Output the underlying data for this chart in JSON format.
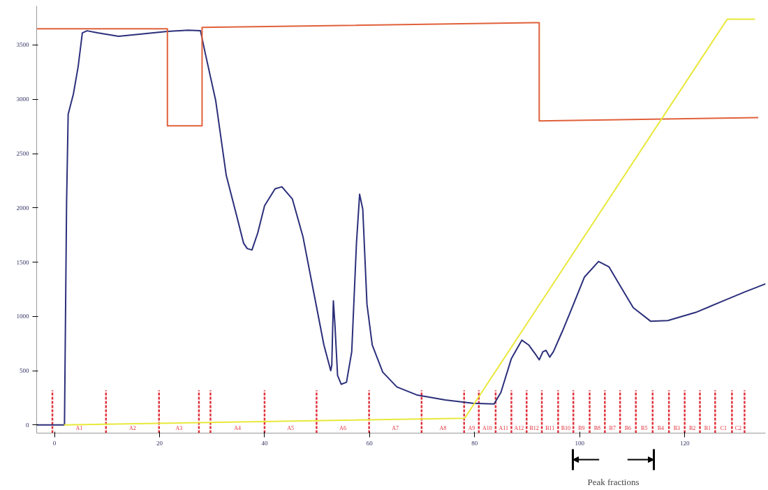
{
  "chart_data": {
    "type": "line",
    "xlim": [
      -3.4,
      135.4
    ],
    "ylim": [
      -75,
      3860
    ],
    "xticks": [
      0,
      20,
      40,
      60,
      80,
      100,
      120
    ],
    "yticks": [
      0,
      500,
      1000,
      1500,
      2000,
      2500,
      3000,
      3500
    ],
    "grid": false,
    "series": [
      {
        "color": "#2b2f7a",
        "x": [
          -3.4,
          1.9,
          2.3,
          2.6,
          3.6,
          4.5,
          5.3,
          6.2,
          8.2,
          12.2,
          16.2,
          21.5,
          25.4,
          27.8,
          28.7,
          30.7,
          32.7,
          34.7,
          36.0,
          36.7,
          37.6,
          38.7,
          40.0,
          42.0,
          43.3,
          45.3,
          47.3,
          49.3,
          51.3,
          52.6,
          52.8,
          53.1,
          53.4,
          53.9,
          54.6,
          55.6,
          56.6,
          57.5,
          58.1,
          58.7,
          59.5,
          60.5,
          62.5,
          65.2,
          69.1,
          74.4,
          79.7,
          83.7,
          85.0,
          87.0,
          89.0,
          90.3,
          91.7,
          92.3,
          93.0,
          93.6,
          94.3,
          95.0,
          96.7,
          98.3,
          100.9,
          103.6,
          105.6,
          107.5,
          110.2,
          113.5,
          116.8,
          122.1,
          127.4,
          131.4,
          135.4
        ],
        "values": [
          0,
          0,
          2050,
          2862,
          3050,
          3300,
          3612,
          3631,
          3612,
          3581,
          3600,
          3625,
          3637,
          3631,
          3425,
          2987,
          2300,
          1925,
          1675,
          1625,
          1612,
          1769,
          2019,
          2175,
          2194,
          2081,
          1737,
          1237,
          737,
          500,
          550,
          1144,
          925,
          456,
          375,
          394,
          675,
          1675,
          2125,
          1987,
          1112,
          737,
          487,
          350,
          275,
          231,
          200,
          194,
          300,
          612,
          781,
          737,
          644,
          600,
          675,
          687,
          625,
          675,
          862,
          1050,
          1362,
          1506,
          1456,
          1300,
          1081,
          956,
          962,
          1037,
          1144,
          1225,
          1300
        ]
      },
      {
        "color": "#e0603a",
        "x": [
          -3.4,
          21.5,
          21.5,
          28.1,
          28.1,
          92.3,
          92.3,
          134.0
        ],
        "values": [
          3650,
          3650,
          2756,
          2756,
          3662,
          3706,
          2800,
          2831
        ]
      },
      {
        "color": "#e8e83a",
        "x": [
          1.8,
          78.1,
          128.1,
          133.4
        ],
        "values": [
          0,
          62,
          3738,
          3738
        ]
      }
    ],
    "ref_lines": [
      {
        "axis": "x",
        "value": -0.4,
        "color": "#e0303a",
        "line_style": "dashed",
        "label": "A1"
      },
      {
        "axis": "x",
        "value": 9.8,
        "color": "#e0303a",
        "line_style": "dashed",
        "label": "A2"
      },
      {
        "axis": "x",
        "value": 19.9,
        "color": "#e0303a",
        "line_style": "dashed",
        "label": "A3"
      },
      {
        "axis": "x",
        "value": 27.5,
        "color": "#e0303a",
        "line_style": "dashed"
      },
      {
        "axis": "x",
        "value": 29.7,
        "color": "#e0303a",
        "line_style": "dashed",
        "label": "A4"
      },
      {
        "axis": "x",
        "value": 40.0,
        "color": "#e0303a",
        "line_style": "dashed",
        "label": "A5"
      },
      {
        "axis": "x",
        "value": 49.9,
        "color": "#e0303a",
        "line_style": "dashed",
        "label": "A6"
      },
      {
        "axis": "x",
        "value": 59.9,
        "color": "#e0303a",
        "line_style": "dashed",
        "label": "A7"
      },
      {
        "axis": "x",
        "value": 69.9,
        "color": "#e0303a",
        "line_style": "dashed",
        "label": "A8"
      },
      {
        "axis": "x",
        "value": 78.0,
        "color": "#e0303a",
        "line_style": "dashed",
        "label": "A9"
      },
      {
        "axis": "x",
        "value": 80.8,
        "color": "#e0303a",
        "line_style": "dashed",
        "label": "A10"
      },
      {
        "axis": "x",
        "value": 84.0,
        "color": "#e0303a",
        "line_style": "dashed",
        "label": "A11"
      },
      {
        "axis": "x",
        "value": 87.0,
        "color": "#e0303a",
        "line_style": "dashed",
        "label": "A12"
      },
      {
        "axis": "x",
        "value": 89.9,
        "color": "#e0303a",
        "line_style": "dashed",
        "label": "B12"
      },
      {
        "axis": "x",
        "value": 92.8,
        "color": "#e0303a",
        "line_style": "dashed",
        "label": "B11"
      },
      {
        "axis": "x",
        "value": 95.9,
        "color": "#e0303a",
        "line_style": "dashed",
        "label": "B10"
      },
      {
        "axis": "x",
        "value": 98.8,
        "color": "#e0303a",
        "line_style": "dashed",
        "label": "B9"
      },
      {
        "axis": "x",
        "value": 101.9,
        "color": "#e0303a",
        "line_style": "dashed",
        "label": "B8"
      },
      {
        "axis": "x",
        "value": 104.8,
        "color": "#e0303a",
        "line_style": "dashed",
        "label": "B7"
      },
      {
        "axis": "x",
        "value": 107.7,
        "color": "#e0303a",
        "line_style": "dashed",
        "label": "B6"
      },
      {
        "axis": "x",
        "value": 110.7,
        "color": "#e0303a",
        "line_style": "dashed",
        "label": "B5"
      },
      {
        "axis": "x",
        "value": 113.9,
        "color": "#e0303a",
        "line_style": "dashed",
        "label": "B4"
      },
      {
        "axis": "x",
        "value": 117.0,
        "color": "#e0303a",
        "line_style": "dashed",
        "label": "B3"
      },
      {
        "axis": "x",
        "value": 120.0,
        "color": "#e0303a",
        "line_style": "dashed",
        "label": "B2"
      },
      {
        "axis": "x",
        "value": 122.9,
        "color": "#e0303a",
        "line_style": "dashed",
        "label": "B1"
      },
      {
        "axis": "x",
        "value": 125.8,
        "color": "#e0303a",
        "line_style": "dashed",
        "label": "C1"
      },
      {
        "axis": "x",
        "value": 129.0,
        "color": "#e0303a",
        "line_style": "dashed",
        "label": "C2"
      },
      {
        "axis": "x",
        "value": 131.4,
        "color": "#e0303a",
        "line_style": "dashed"
      }
    ],
    "annotations": [
      "Peak fractions"
    ]
  }
}
